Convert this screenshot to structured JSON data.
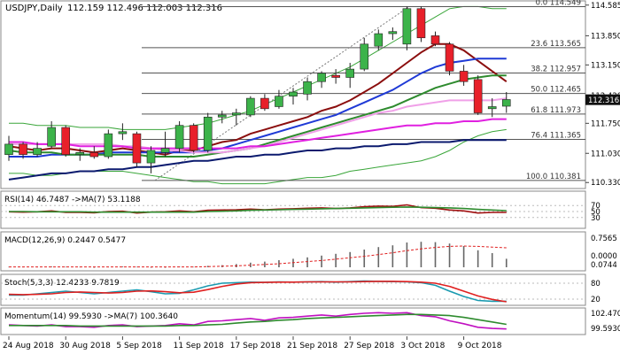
{
  "header": {
    "symbol": "USDJPY,Daily",
    "ohlc": "112.159 112.496 112.003 112.316"
  },
  "colors": {
    "bull": "#3cb34a",
    "bear": "#e8202a",
    "ma_darkred": "#8b0e0e",
    "ma_blue": "#1f3ad6",
    "ma_green": "#2e8b2e",
    "ma_magenta": "#e020e0",
    "ma_pink": "#f0a0e8",
    "ma_navy": "#0b1a6e",
    "bb": "#3aa63a",
    "fib": "#555555",
    "price_tag": "#101010"
  },
  "chart_data": [
    {
      "type": "candlestick",
      "title": "USDJPY,Daily",
      "ylim": [
        110.25,
        114.58
      ],
      "y_ticks": [
        "114.585",
        "113.850",
        "113.150",
        "112.420",
        "111.750",
        "111.030",
        "110.330"
      ],
      "current_price": "112.316",
      "x_labels": [
        "24 Aug 2018",
        "30 Aug 2018",
        "5 Sep 2018",
        "11 Sep 2018",
        "17 Sep 2018",
        "21 Sep 2018",
        "27 Sep 2018",
        "3 Oct 2018",
        "9 Oct 2018"
      ],
      "x_label_index": [
        0,
        4,
        8,
        12,
        16,
        20,
        24,
        28,
        32
      ],
      "candles": [
        {
          "o": 111.0,
          "h": 111.45,
          "l": 110.85,
          "c": 111.25
        },
        {
          "o": 111.25,
          "h": 111.3,
          "l": 110.9,
          "c": 111.0
        },
        {
          "o": 111.0,
          "h": 111.3,
          "l": 110.95,
          "c": 111.15
        },
        {
          "o": 111.2,
          "h": 111.8,
          "l": 111.15,
          "c": 111.65
        },
        {
          "o": 111.65,
          "h": 111.7,
          "l": 110.95,
          "c": 111.0
        },
        {
          "o": 111.0,
          "h": 111.15,
          "l": 110.85,
          "c": 111.05
        },
        {
          "o": 111.05,
          "h": 111.2,
          "l": 110.9,
          "c": 110.95
        },
        {
          "o": 110.95,
          "h": 111.6,
          "l": 110.9,
          "c": 111.5
        },
        {
          "o": 111.5,
          "h": 111.75,
          "l": 111.35,
          "c": 111.55
        },
        {
          "o": 111.5,
          "h": 111.55,
          "l": 110.7,
          "c": 110.8
        },
        {
          "o": 110.8,
          "h": 111.2,
          "l": 110.55,
          "c": 111.1
        },
        {
          "o": 111.05,
          "h": 111.55,
          "l": 110.95,
          "c": 111.15
        },
        {
          "o": 111.15,
          "h": 111.8,
          "l": 111.05,
          "c": 111.7
        },
        {
          "o": 111.7,
          "h": 111.75,
          "l": 111.05,
          "c": 111.1
        },
        {
          "o": 111.1,
          "h": 112.0,
          "l": 111.05,
          "c": 111.9
        },
        {
          "o": 111.9,
          "h": 112.05,
          "l": 111.75,
          "c": 111.95
        },
        {
          "o": 111.95,
          "h": 112.1,
          "l": 111.7,
          "c": 112.0
        },
        {
          "o": 111.95,
          "h": 112.4,
          "l": 111.9,
          "c": 112.35
        },
        {
          "o": 112.35,
          "h": 112.45,
          "l": 112.05,
          "c": 112.1
        },
        {
          "o": 112.15,
          "h": 112.55,
          "l": 112.1,
          "c": 112.4
        },
        {
          "o": 112.4,
          "h": 112.6,
          "l": 112.2,
          "c": 112.5
        },
        {
          "o": 112.45,
          "h": 112.85,
          "l": 112.3,
          "c": 112.75
        },
        {
          "o": 112.75,
          "h": 113.0,
          "l": 112.6,
          "c": 112.95
        },
        {
          "o": 112.9,
          "h": 113.05,
          "l": 112.7,
          "c": 112.85
        },
        {
          "o": 112.85,
          "h": 113.2,
          "l": 112.6,
          "c": 113.05
        },
        {
          "o": 113.05,
          "h": 113.8,
          "l": 113.0,
          "c": 113.65
        },
        {
          "o": 113.6,
          "h": 114.0,
          "l": 113.5,
          "c": 113.9
        },
        {
          "o": 113.9,
          "h": 114.05,
          "l": 113.75,
          "c": 113.95
        },
        {
          "o": 113.65,
          "h": 114.55,
          "l": 113.5,
          "c": 114.5
        },
        {
          "o": 114.5,
          "h": 114.55,
          "l": 113.7,
          "c": 113.8
        },
        {
          "o": 113.85,
          "h": 113.95,
          "l": 113.6,
          "c": 113.65
        },
        {
          "o": 113.65,
          "h": 113.7,
          "l": 112.9,
          "c": 113.0
        },
        {
          "o": 113.0,
          "h": 113.15,
          "l": 112.65,
          "c": 112.75
        },
        {
          "o": 112.8,
          "h": 112.9,
          "l": 111.95,
          "c": 112.0
        },
        {
          "o": 112.1,
          "h": 112.35,
          "l": 111.9,
          "c": 112.15
        },
        {
          "o": 112.16,
          "h": 112.5,
          "l": 112.0,
          "c": 112.32
        }
      ],
      "fibonacci": [
        {
          "label": "0.0 114.549",
          "value": 114.549
        },
        {
          "label": "23.6 113.565",
          "value": 113.565
        },
        {
          "label": "38.2 112.957",
          "value": 112.957
        },
        {
          "label": "50.0 112.465",
          "value": 112.465
        },
        {
          "label": "61.8 111.973",
          "value": 111.973
        },
        {
          "label": "76.4 111.365",
          "value": 111.365
        },
        {
          "label": "100.0 110.381",
          "value": 110.381
        }
      ],
      "moving_averages": [
        {
          "color_key": "ma_darkred",
          "values": [
            111.2,
            111.15,
            111.1,
            111.15,
            111.15,
            111.1,
            111.05,
            111.1,
            111.15,
            111.1,
            111.05,
            111.0,
            111.1,
            111.1,
            111.2,
            111.3,
            111.35,
            111.5,
            111.6,
            111.7,
            111.8,
            111.9,
            112.05,
            112.15,
            112.3,
            112.5,
            112.7,
            112.95,
            113.2,
            113.45,
            113.65,
            113.65,
            113.5,
            113.25,
            113.0,
            112.75
          ]
        },
        {
          "color_key": "ma_blue",
          "values": [
            110.95,
            110.95,
            110.95,
            111.0,
            111.0,
            111.0,
            111.0,
            111.05,
            111.05,
            111.05,
            111.05,
            111.05,
            111.05,
            111.05,
            111.1,
            111.15,
            111.25,
            111.35,
            111.45,
            111.55,
            111.65,
            111.75,
            111.85,
            111.95,
            112.1,
            112.25,
            112.4,
            112.55,
            112.75,
            112.95,
            113.1,
            113.2,
            113.25,
            113.3,
            113.3,
            113.3
          ]
        },
        {
          "color_key": "ma_green",
          "values": [
            111.1,
            111.05,
            111.05,
            111.05,
            111.0,
            111.0,
            111.0,
            111.0,
            111.0,
            111.0,
            110.95,
            110.95,
            110.95,
            110.95,
            111.0,
            111.05,
            111.1,
            111.15,
            111.25,
            111.35,
            111.45,
            111.55,
            111.65,
            111.75,
            111.85,
            111.95,
            112.05,
            112.15,
            112.3,
            112.45,
            112.6,
            112.7,
            112.8,
            112.85,
            112.9,
            112.9
          ]
        },
        {
          "color_key": "ma_pink",
          "values": [
            111.25,
            111.25,
            111.25,
            111.25,
            111.25,
            111.25,
            111.25,
            111.25,
            111.2,
            111.2,
            111.15,
            111.1,
            111.1,
            111.05,
            111.05,
            111.05,
            111.1,
            111.15,
            111.2,
            111.3,
            111.4,
            111.5,
            111.6,
            111.7,
            111.8,
            111.9,
            112.0,
            112.05,
            112.15,
            112.2,
            112.25,
            112.3,
            112.3,
            112.3,
            112.3,
            112.35
          ]
        },
        {
          "color_key": "ma_magenta",
          "values": [
            111.3,
            111.3,
            111.25,
            111.25,
            111.25,
            111.2,
            111.2,
            111.2,
            111.2,
            111.15,
            111.15,
            111.15,
            111.15,
            111.15,
            111.15,
            111.15,
            111.15,
            111.2,
            111.2,
            111.25,
            111.3,
            111.35,
            111.4,
            111.45,
            111.5,
            111.55,
            111.6,
            111.65,
            111.7,
            111.7,
            111.75,
            111.75,
            111.8,
            111.8,
            111.85,
            111.85
          ]
        },
        {
          "color_key": "ma_navy",
          "values": [
            110.4,
            110.45,
            110.5,
            110.55,
            110.55,
            110.6,
            110.6,
            110.65,
            110.65,
            110.7,
            110.7,
            110.75,
            110.8,
            110.85,
            110.85,
            110.9,
            110.95,
            110.95,
            111.0,
            111.0,
            111.05,
            111.1,
            111.1,
            111.15,
            111.15,
            111.2,
            111.2,
            111.25,
            111.25,
            111.3,
            111.3,
            111.3,
            111.35,
            111.35,
            111.35,
            111.35
          ]
        }
      ],
      "bollinger": {
        "upper": [
          111.75,
          111.75,
          111.7,
          111.7,
          111.7,
          111.65,
          111.65,
          111.65,
          111.6,
          111.6,
          111.6,
          111.6,
          111.65,
          111.7,
          111.75,
          111.85,
          111.95,
          112.05,
          112.2,
          112.35,
          112.5,
          112.65,
          112.8,
          112.95,
          113.1,
          113.3,
          113.5,
          113.7,
          113.9,
          114.1,
          114.3,
          114.5,
          114.55,
          114.55,
          114.5,
          114.5
        ],
        "lower": [
          110.55,
          110.55,
          110.5,
          110.5,
          110.55,
          110.6,
          110.6,
          110.6,
          110.6,
          110.55,
          110.5,
          110.45,
          110.4,
          110.35,
          110.35,
          110.3,
          110.3,
          110.3,
          110.3,
          110.35,
          110.4,
          110.45,
          110.45,
          110.5,
          110.6,
          110.65,
          110.7,
          110.75,
          110.8,
          110.85,
          110.95,
          111.1,
          111.3,
          111.45,
          111.55,
          111.6
        ]
      }
    },
    {
      "type": "line",
      "title": "RSI(14) 46.7487 ->MA(7) 53.1188",
      "ylim": [
        0,
        100
      ],
      "y_ticks": [
        "70",
        "50",
        "30"
      ],
      "series": [
        {
          "name": "RSI(14)",
          "values": [
            49,
            48,
            49,
            52,
            47,
            47,
            46,
            50,
            51,
            45,
            48,
            49,
            52,
            49,
            54,
            55,
            56,
            58,
            56,
            58,
            59,
            61,
            62,
            60,
            62,
            66,
            68,
            67,
            72,
            63,
            61,
            55,
            52,
            45,
            47,
            47
          ]
        },
        {
          "name": "MA(7)",
          "values": [
            50,
            50,
            49,
            49,
            49,
            49,
            48,
            48,
            48,
            48,
            48,
            48,
            48,
            48,
            50,
            51,
            52,
            54,
            55,
            56,
            57,
            58,
            59,
            60,
            61,
            62,
            63,
            64,
            65,
            64,
            63,
            62,
            60,
            57,
            55,
            53
          ]
        }
      ]
    },
    {
      "type": "bar",
      "title": "MACD(12,26,9) 0.2447 0.5477",
      "ylim": [
        -0.05,
        0.8
      ],
      "y_ticks": [
        "0.7565",
        "0.0000",
        "0.0744"
      ],
      "series": [
        {
          "name": "MACD",
          "values": [
            0.01,
            0.01,
            0.01,
            0.02,
            0.01,
            0.01,
            0.0,
            0.01,
            0.02,
            0.01,
            0.0,
            0.0,
            0.02,
            0.01,
            0.04,
            0.06,
            0.09,
            0.13,
            0.16,
            0.2,
            0.24,
            0.28,
            0.33,
            0.38,
            0.43,
            0.5,
            0.57,
            0.62,
            0.7,
            0.72,
            0.71,
            0.67,
            0.6,
            0.48,
            0.4,
            0.24
          ]
        },
        {
          "name": "Signal",
          "values": [
            0.01,
            0.01,
            0.01,
            0.01,
            0.01,
            0.01,
            0.01,
            0.01,
            0.01,
            0.01,
            0.01,
            0.01,
            0.01,
            0.01,
            0.02,
            0.03,
            0.04,
            0.06,
            0.08,
            0.1,
            0.13,
            0.16,
            0.19,
            0.23,
            0.27,
            0.31,
            0.36,
            0.41,
            0.47,
            0.52,
            0.56,
            0.59,
            0.6,
            0.59,
            0.57,
            0.55
          ]
        }
      ]
    },
    {
      "type": "line",
      "title": "Stoch(5,3,3) 12.4233 9.7819",
      "ylim": [
        0,
        100
      ],
      "y_ticks": [
        "80",
        "20"
      ],
      "series": [
        {
          "name": "%K",
          "values": [
            35,
            35,
            40,
            45,
            50,
            45,
            40,
            45,
            50,
            55,
            48,
            40,
            42,
            55,
            70,
            80,
            82,
            84,
            83,
            85,
            84,
            85,
            86,
            84,
            86,
            88,
            87,
            86,
            85,
            82,
            72,
            50,
            30,
            15,
            12,
            12
          ]
        },
        {
          "name": "%D",
          "values": [
            38,
            37,
            38,
            40,
            45,
            47,
            45,
            43,
            45,
            50,
            51,
            48,
            44,
            46,
            56,
            68,
            77,
            82,
            83,
            84,
            84,
            85,
            85,
            85,
            85,
            86,
            87,
            87,
            86,
            84,
            80,
            68,
            50,
            32,
            19,
            10
          ]
        }
      ]
    },
    {
      "type": "line",
      "title": "Momentum(14) 99.5930 ->MA(7) 100.3640",
      "ylim": [
        98.8,
        102.9
      ],
      "y_ticks": [
        "102.4708",
        "99.5930"
      ],
      "series": [
        {
          "name": "Momentum(14)",
          "values": [
            100.3,
            100.2,
            100.1,
            100.3,
            100.0,
            100.0,
            99.9,
            100.2,
            100.3,
            100.0,
            100.1,
            100.2,
            100.5,
            100.3,
            100.9,
            101.0,
            101.2,
            101.4,
            101.1,
            101.5,
            101.6,
            101.8,
            102.0,
            101.8,
            102.1,
            102.3,
            102.4,
            102.3,
            102.4,
            101.9,
            101.7,
            101.0,
            100.5,
            99.9,
            99.7,
            99.6
          ]
        },
        {
          "name": "MA(7)",
          "values": [
            100.2,
            100.2,
            100.2,
            100.2,
            100.2,
            100.1,
            100.1,
            100.1,
            100.1,
            100.1,
            100.1,
            100.1,
            100.2,
            100.2,
            100.3,
            100.4,
            100.6,
            100.8,
            100.9,
            101.1,
            101.2,
            101.4,
            101.5,
            101.6,
            101.7,
            101.8,
            101.9,
            102.0,
            102.1,
            102.1,
            102.0,
            101.9,
            101.6,
            101.2,
            100.8,
            100.4
          ]
        }
      ]
    }
  ]
}
